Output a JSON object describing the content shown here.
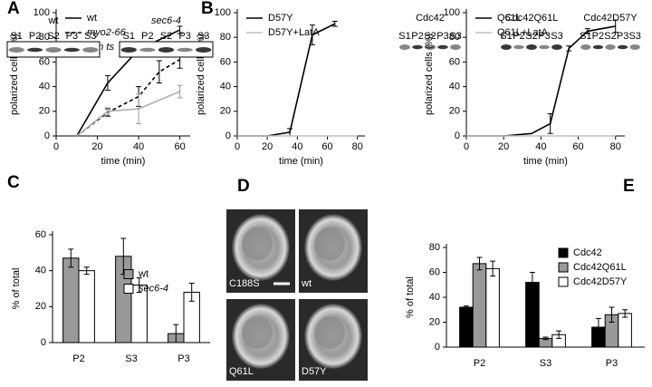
{
  "chart_data": [
    {
      "type": "line",
      "panel": "A",
      "xlabel": "time (min)",
      "ylabel": "polarized cells (%)",
      "xlim": [
        0,
        65
      ],
      "xticks": [
        0,
        20,
        40,
        60
      ],
      "ylim": [
        0,
        100
      ],
      "yticks": [
        0,
        20,
        40,
        60,
        80,
        100
      ],
      "legend": "upper left",
      "series": [
        {
          "name": "wt",
          "color": "#000000",
          "style": "solid",
          "x": [
            10,
            25,
            40,
            60
          ],
          "values": [
            0,
            43,
            70,
            86
          ],
          "errors": [
            null,
            6,
            6,
            3
          ]
        },
        {
          "name": "myo2-66",
          "color": "#000000",
          "style": "dashed",
          "italic": true,
          "x": [
            10,
            25,
            40,
            50,
            60
          ],
          "values": [
            0,
            19,
            32,
            52,
            62
          ],
          "errors": [
            null,
            3,
            8,
            9,
            7
          ]
        },
        {
          "name": "tpm ts",
          "color": "#b0b0b0",
          "style": "solid",
          "italic": true,
          "x": [
            10,
            25,
            40,
            60
          ],
          "values": [
            0,
            20,
            22,
            36
          ],
          "errors": [
            null,
            3,
            12,
            5
          ]
        }
      ]
    },
    {
      "type": "line",
      "panel": "B",
      "xlabel": "time (min)",
      "ylabel": "polarized cells (%)",
      "xlim": [
        0,
        85
      ],
      "xticks": [
        0,
        20,
        40,
        60,
        80
      ],
      "ylim": [
        0,
        100
      ],
      "yticks": [
        0,
        20,
        40,
        60,
        80,
        100
      ],
      "legend": "upper left",
      "series": [
        {
          "name": "D57Y",
          "color": "#000000",
          "style": "solid",
          "x": [
            0,
            20,
            35,
            50,
            65
          ],
          "values": [
            0,
            0,
            3,
            82,
            91
          ],
          "errors": [
            null,
            null,
            3,
            8,
            2
          ]
        },
        {
          "name": "D57Y+LatA",
          "color": "#c0c0c0",
          "style": "solid",
          "x": [
            0,
            20,
            35,
            50,
            65,
            80
          ],
          "values": [
            0,
            0,
            0,
            0,
            0,
            0
          ],
          "errors": [
            null,
            null,
            null,
            null,
            null,
            null
          ]
        }
      ]
    },
    {
      "type": "line",
      "xlabel": "time (min)",
      "ylabel": "polarized cells (%)",
      "xlim": [
        0,
        85
      ],
      "xticks": [
        0,
        20,
        40,
        60,
        80
      ],
      "ylim": [
        0,
        100
      ],
      "yticks": [
        0,
        20,
        40,
        60,
        80,
        100
      ],
      "legend": "upper left",
      "series": [
        {
          "name": "Q61L",
          "color": "#000000",
          "style": "solid",
          "x": [
            0,
            20,
            35,
            45,
            55,
            65,
            80
          ],
          "values": [
            0,
            0,
            2,
            10,
            71,
            85,
            89
          ],
          "errors": [
            null,
            null,
            null,
            8,
            2,
            2,
            5
          ]
        },
        {
          "name": "Q61L+LatA",
          "color": "#c0c0c0",
          "style": "solid",
          "x": [
            0,
            20,
            35,
            45,
            55,
            65,
            80
          ],
          "values": [
            0,
            0,
            0,
            0,
            0,
            0,
            0
          ],
          "errors": [
            null,
            null,
            null,
            null,
            null,
            null,
            null
          ]
        }
      ]
    },
    {
      "type": "bar",
      "panel": "C",
      "ylabel": "% of total",
      "categories": [
        "P2",
        "S3",
        "P3"
      ],
      "ylim": [
        0,
        60
      ],
      "yticks": [
        0,
        20,
        40,
        60
      ],
      "legend": "center right",
      "series": [
        {
          "name": "wt",
          "color": "#999999",
          "values": [
            47,
            48,
            5
          ],
          "errors": [
            5,
            10,
            5
          ]
        },
        {
          "name": "sec6-4",
          "color": "#ffffff",
          "italic": true,
          "values": [
            40,
            32,
            28
          ],
          "errors": [
            2,
            4,
            5
          ]
        }
      ]
    },
    {
      "type": "bar",
      "panel": "E",
      "ylabel": "% of total",
      "categories": [
        "P2",
        "S3",
        "P3"
      ],
      "ylim": [
        0,
        80
      ],
      "yticks": [
        0,
        20,
        40,
        60,
        80
      ],
      "legend": "upper right",
      "series": [
        {
          "name": "Cdc42",
          "color": "#000000",
          "values": [
            32,
            52,
            16
          ],
          "errors": [
            1,
            8,
            7
          ]
        },
        {
          "name": "Cdc42Q61L",
          "color": "#999999",
          "values": [
            67,
            7,
            26
          ],
          "errors": [
            5,
            1,
            6
          ]
        },
        {
          "name": "Cdc42D57Y",
          "color": "#ffffff",
          "values": [
            63,
            10,
            27
          ],
          "errors": [
            6,
            3,
            3
          ]
        }
      ]
    }
  ],
  "blots": [
    {
      "groups": [
        {
          "label": "wt",
          "lanes": [
            "S1",
            "P2",
            "S2",
            "P3",
            "S3"
          ]
        },
        {
          "label": "sec6-4",
          "lanes": [
            "S1",
            "P2",
            "S2",
            "P3",
            "S3"
          ]
        }
      ]
    },
    {
      "groups": [
        {
          "label": "Cdc42",
          "lanes": [
            "S1",
            "P2",
            "S2",
            "P3",
            "S3"
          ]
        },
        {
          "label": "Cdc42Q61L",
          "lanes": [
            "S1",
            "P2",
            "S2",
            "P3",
            "S3"
          ]
        },
        {
          "label": "Cdc42D57Y",
          "lanes": [
            "S1",
            "P2",
            "S2",
            "P3",
            "S3"
          ]
        }
      ]
    }
  ],
  "micrographs": {
    "panel": "D",
    "labels": [
      "C188S",
      "wt",
      "Q61L",
      "D57Y"
    ]
  }
}
